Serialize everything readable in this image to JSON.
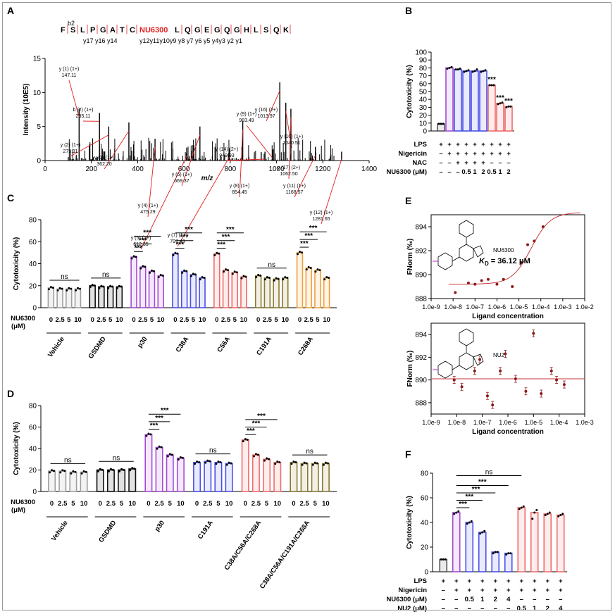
{
  "figure": {
    "panels": [
      {
        "id": "A",
        "type": "bar",
        "title": "",
        "xlabel": "m/z",
        "ylabel": "Intensity (10E5)",
        "xlim": [
          0,
          1400
        ],
        "ylim": [
          0,
          15
        ],
        "xticks": [
          "0",
          "200",
          "400",
          "600",
          "800",
          "1000",
          "1200",
          "1400"
        ],
        "yticks": [
          "0",
          "5",
          "10",
          "15"
        ],
        "peptide": {
          "residues": [
            "F",
            "S",
            "L",
            "P",
            "G",
            "A",
            "T",
            "C",
            "NU6300",
            "L",
            "Q",
            "G",
            "E",
            "G",
            "Q",
            "G",
            "H",
            "L",
            "S",
            "Q",
            "K"
          ],
          "b_labels": [
            "b2"
          ],
          "y_labels_left": [
            "y17",
            "y16",
            "y14"
          ],
          "y_labels_right": "y12y11y10y9 y8 y7 y6 y5 y4y3 y2 y1"
        },
        "peaks": [
          {
            "label": "y (1) (1+)",
            "value": "147.11",
            "mz": 147,
            "height": 7.6
          },
          {
            "label": "b (2) (1+)",
            "value": "235.11",
            "mz": 235,
            "height": 7.0
          },
          {
            "label": "y (2) (1+)",
            "value": "275.11",
            "mz": 275,
            "height": 5.0
          },
          {
            "label": "y (3) (1+)",
            "value": "362.20",
            "mz": 362,
            "height": 5.6
          },
          {
            "label": "y (4) (1+)",
            "value": "475.29",
            "mz": 475,
            "height": 3.2
          },
          {
            "label": "y (5) (1+)",
            "value": "612.35",
            "mz": 612,
            "height": 1.9
          },
          {
            "label": "y (6) (1+)",
            "value": "669.37",
            "mz": 669,
            "height": 5.0
          },
          {
            "label": "y (7) (1+)",
            "value": "797.43",
            "mz": 797,
            "height": 1.8
          },
          {
            "label": "y (8) (1+)",
            "value": "854.45",
            "mz": 854,
            "height": 5.8
          },
          {
            "label": "y (14) (2+)",
            "value": "949.93",
            "mz": 950,
            "height": 1.3
          },
          {
            "label": "y (9) (1+)",
            "value": "983.49",
            "mz": 983,
            "height": 1.6
          },
          {
            "label": "y (16) (2+)",
            "value": "1013.97",
            "mz": 1014,
            "height": 11.5
          },
          {
            "label": "y (10) (1+)",
            "value": "1040.51",
            "mz": 1040,
            "height": 8.5
          },
          {
            "label": "y (17) (2+)",
            "value": "1062.50",
            "mz": 1062,
            "height": 7.6
          },
          {
            "label": "y (11) (1+)",
            "value": "1168.57",
            "mz": 1168,
            "height": 2.0
          },
          {
            "label": "y (12) (1+)",
            "value": "1281.65",
            "mz": 1281,
            "height": 1.3
          }
        ]
      },
      {
        "id": "B",
        "type": "bar",
        "ylabel": "Cytotoxicity (%)",
        "ylim": [
          0,
          100
        ],
        "yticks": [
          "0",
          "10",
          "20",
          "30",
          "40",
          "50",
          "60",
          "70",
          "80",
          "90",
          "100"
        ],
        "values": [
          9,
          80,
          78,
          76,
          76,
          76,
          58,
          35,
          31
        ],
        "points": [
          [
            9,
            9,
            9
          ],
          [
            79,
            80,
            81
          ],
          [
            78,
            78,
            79
          ],
          [
            75,
            76,
            77
          ],
          [
            75,
            76,
            78
          ],
          [
            75,
            76,
            77
          ],
          [
            58,
            58,
            58
          ],
          [
            34,
            35,
            36
          ],
          [
            30,
            31,
            31
          ]
        ],
        "bar_colors": [
          "#555555",
          "#a54bd6",
          "#4a4fe6",
          "#4a4fe6",
          "#4a4fe6",
          "#4a4fe6",
          "#f06b6b",
          "#f06b6b",
          "#f06b6b"
        ],
        "stars": [
          "",
          "",
          "",
          "",
          "",
          "",
          "***",
          "***",
          "***"
        ],
        "rows": [
          {
            "label": "LPS",
            "cells": [
              "+",
              "+",
              "+",
              "+",
              "+",
              "+",
              "+",
              "+",
              "+"
            ]
          },
          {
            "label": "Nigericin",
            "cells": [
              "–",
              "+",
              "+",
              "+",
              "+",
              "+",
              "+",
              "+",
              "+"
            ]
          },
          {
            "label": "NAC",
            "cells": [
              "–",
              "–",
              "+",
              "+",
              "+",
              "+",
              "–",
              "–",
              "–"
            ]
          },
          {
            "label": "NU6300 (μM)",
            "cells": [
              "–",
              "–",
              "–",
              "0.5",
              "1",
              "2",
              "0.5",
              "1",
              "2"
            ]
          }
        ]
      },
      {
        "id": "C",
        "type": "bar",
        "ylabel": "Cytotoxicity (%)",
        "ylim": [
          0,
          80
        ],
        "yticks": [
          "0",
          "20",
          "40",
          "60",
          "80"
        ],
        "row_label": "NU6300",
        "row_label2": "(μM)",
        "doses": [
          "0",
          "2.5",
          "5",
          "10"
        ],
        "ns_label": "ns",
        "star_label": "***",
        "groups": [
          {
            "name": "Vehicle",
            "color": "#9e9e9e",
            "values": [
              18,
              17,
              17,
              17
            ],
            "sig": "ns"
          },
          {
            "name": "GSDMD",
            "color": "#111111",
            "values": [
              20,
              19,
              19,
              19
            ],
            "sig": "ns"
          },
          {
            "name": "p30",
            "color": "#a54bd6",
            "values": [
              46,
              37,
              33,
              29
            ],
            "sig": "***"
          },
          {
            "name": "C38A",
            "color": "#4a4fe6",
            "values": [
              49,
              33,
              30,
              27
            ],
            "sig": "***"
          },
          {
            "name": "C56A",
            "color": "#f06b6b",
            "values": [
              49,
              34,
              32,
              28
            ],
            "sig": "***"
          },
          {
            "name": "C191A",
            "color": "#8a7a2e",
            "values": [
              29,
              27,
              26,
              27
            ],
            "sig": "ns"
          },
          {
            "name": "C268A",
            "color": "#f0a13a",
            "values": [
              50,
              36,
              34,
              27
            ],
            "sig": "***"
          }
        ]
      },
      {
        "id": "D",
        "type": "bar",
        "ylabel": "Cytotoxicity (%)",
        "ylim": [
          0,
          80
        ],
        "yticks": [
          "0",
          "20",
          "40",
          "60",
          "80"
        ],
        "row_label": "NU6300",
        "row_label2": "(μM)",
        "doses": [
          "0",
          "2.5",
          "5",
          "10"
        ],
        "ns_label": "ns",
        "star_label": "***",
        "groups": [
          {
            "name": "Vehicle",
            "color": "#9e9e9e",
            "values": [
              19,
              19,
              18,
              18
            ],
            "sig": "ns"
          },
          {
            "name": "GSDMD",
            "color": "#111111",
            "values": [
              20,
              20,
              20,
              21
            ],
            "sig": "ns"
          },
          {
            "name": "p30",
            "color": "#a54bd6",
            "values": [
              53,
              41,
              34,
              31
            ],
            "sig": "***"
          },
          {
            "name": "C191A",
            "color": "#4a4fe6",
            "values": [
              27,
              28,
              27,
              26
            ],
            "sig": "ns"
          },
          {
            "name": "C38A/C56A/C268A",
            "color": "#f06b6b",
            "values": [
              48,
              34,
              30,
              27
            ],
            "sig": "***"
          },
          {
            "name": "C38A/C56A/C191A/C268A",
            "color": "#8a7a2e",
            "values": [
              27,
              26,
              26,
              26
            ],
            "sig": "ns"
          }
        ]
      },
      {
        "id": "E",
        "type": "scatter",
        "subpanels": [
          {
            "compound": "NU6300",
            "kd_label": "K",
            "kd_sub": "D",
            "kd_value": " = 36.12 μM",
            "ylabel": "FNorm (‰)",
            "xlabel": "Ligand concentration",
            "xlim": [
              -9,
              -2
            ],
            "ylim": [
              888,
              895
            ],
            "xticks": [
              "1.0e-9",
              "1.0e-8",
              "1.0e-7",
              "1.0e-6",
              "1.0e-5",
              "1.0e-4",
              "1.0e-3",
              "1.0e-2"
            ],
            "yticks": [
              "888",
              "890",
              "892",
              "894"
            ],
            "fit": {
              "bottom": 889.2,
              "top": 895.2,
              "log_kd": -4.44,
              "hill": 1.0
            },
            "points": [
              [
                -7.9,
                888.5
              ],
              [
                -7.3,
                889.3
              ],
              [
                -7.0,
                889.2
              ],
              [
                -6.7,
                889.5
              ],
              [
                -6.4,
                889.6
              ],
              [
                -6.0,
                889.2
              ],
              [
                -5.7,
                889.6
              ],
              [
                -5.3,
                889.0
              ],
              [
                -4.9,
                891.0
              ],
              [
                -4.6,
                892.5
              ],
              [
                -4.3,
                892.8
              ],
              [
                -3.9,
                894.0
              ]
            ]
          },
          {
            "compound": "NU2",
            "ylabel": "FNorm (‰)",
            "xlabel": "Ligand concentration",
            "xlim": [
              -9,
              -3
            ],
            "ylim": [
              887,
              895
            ],
            "xticks": [
              "1.0e-9",
              "1.0e-8",
              "1.0e-7",
              "1.0e-6",
              "1.0e-5",
              "1.0e-4",
              "1.0e-3"
            ],
            "yticks": [
              "888",
              "890",
              "892",
              "894"
            ],
            "fit": {
              "flat": 890.1
            },
            "points": [
              [
                -8.1,
                890.0
              ],
              [
                -7.8,
                889.4
              ],
              [
                -7.3,
                890.8
              ],
              [
                -7.1,
                891.8
              ],
              [
                -6.8,
                888.6
              ],
              [
                -6.6,
                887.8
              ],
              [
                -6.3,
                890.8
              ],
              [
                -6.1,
                892.3
              ],
              [
                -5.7,
                890.1
              ],
              [
                -5.3,
                889.0
              ],
              [
                -5.0,
                894.1
              ],
              [
                -4.7,
                888.8
              ],
              [
                -4.3,
                890.8
              ],
              [
                -4.1,
                890.0
              ],
              [
                -3.8,
                889.6
              ]
            ]
          }
        ]
      },
      {
        "id": "F",
        "type": "bar",
        "ylabel": "Cytotoxicity (%)",
        "ylim": [
          0,
          80
        ],
        "yticks": [
          "0",
          "20",
          "40",
          "60",
          "80"
        ],
        "values": [
          10,
          48,
          40,
          32,
          16,
          15,
          52,
          48,
          47,
          46
        ],
        "points": [
          [
            10,
            10,
            10
          ],
          [
            47,
            48,
            49
          ],
          [
            39,
            40,
            41
          ],
          [
            31,
            32,
            33
          ],
          [
            15,
            16,
            16
          ],
          [
            14,
            15,
            15
          ],
          [
            51,
            52,
            53
          ],
          [
            43,
            48,
            50
          ],
          [
            46,
            47,
            48
          ],
          [
            45,
            46,
            47
          ]
        ],
        "bar_colors": [
          "#555555",
          "#a54bd6",
          "#4a4fe6",
          "#4a4fe6",
          "#4a4fe6",
          "#4a4fe6",
          "#f06b6b",
          "#f06b6b",
          "#f06b6b",
          "#f06b6b"
        ],
        "sig_lines": [
          "***",
          "***",
          "***",
          "***",
          "ns"
        ],
        "rows": [
          {
            "label": "LPS",
            "cells": [
              "+",
              "+",
              "+",
              "+",
              "+",
              "+",
              "+",
              "+",
              "+",
              "+"
            ]
          },
          {
            "label": "Nigericin",
            "cells": [
              "–",
              "+",
              "+",
              "+",
              "+",
              "+",
              "+",
              "+",
              "+",
              "+"
            ]
          },
          {
            "label": "NU6300 (μM)",
            "cells": [
              "–",
              "–",
              "0.5",
              "1",
              "2",
              "4",
              "–",
              "–",
              "–",
              "–"
            ]
          },
          {
            "label": "NU2 (μM)",
            "cells": [
              "–",
              "–",
              "–",
              "–",
              "–",
              "–",
              "0.5",
              "1",
              "2",
              "4"
            ]
          }
        ]
      }
    ]
  }
}
